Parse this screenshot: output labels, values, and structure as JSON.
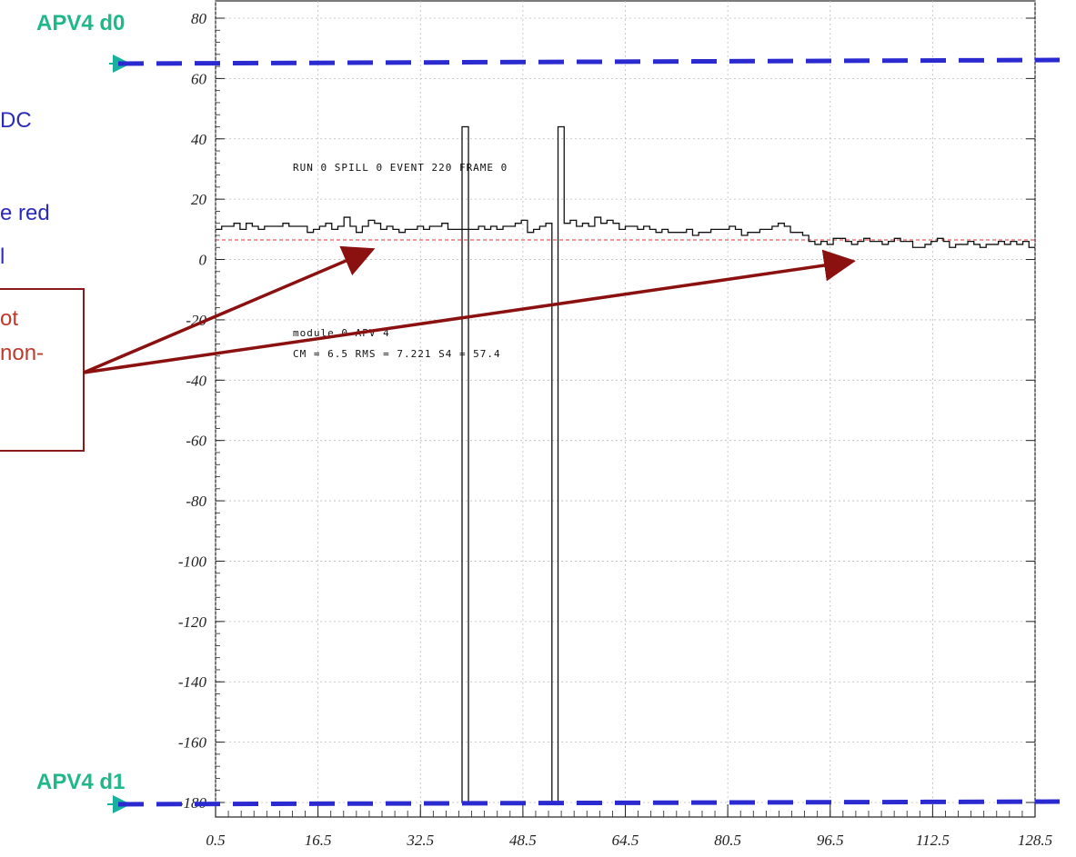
{
  "labels": {
    "top_marker": "APV4 d0",
    "bottom_marker": "APV4 d1"
  },
  "side_text": {
    "line1": "DC",
    "line2": "e red",
    "line3": "l",
    "box_line1": "ot",
    "box_line2": "non-"
  },
  "annotations": {
    "run_line": "RUN   0  SPILL   0  EVENT   220  FRAME   0",
    "module_line": "module 0 APV 4",
    "cm_line": "CM =    6.5  RMS =  7.221  S4 =   57.4"
  },
  "colors": {
    "marker_line": "#2a2ad0",
    "marker_arrow": "#19b0a0",
    "marker_label": "#1fb88a",
    "side_text": "#2b2bb8",
    "box_border": "#8b1a1a",
    "box_text": "#c0392b",
    "annotation_arrow": "#8b1010",
    "mean_line": "#e03030",
    "histogram": "#111111"
  },
  "chart_data": {
    "type": "line",
    "style": "step histogram",
    "title": "",
    "xlabel": "",
    "ylabel": "",
    "xlim": [
      0.5,
      128.5
    ],
    "ylim": [
      -185,
      82
    ],
    "x_ticks": [
      "0.5",
      "16.5",
      "32.5",
      "48.5",
      "64.5",
      "80.5",
      "96.5",
      "112.5",
      "128.5"
    ],
    "y_ticks": [
      "80",
      "60",
      "40",
      "20",
      "0",
      "-20",
      "-40",
      "-60",
      "-80",
      "-100",
      "-120",
      "-140",
      "-160",
      "-180"
    ],
    "grid": true,
    "series": [
      {
        "values": [
          10,
          11,
          11,
          12,
          10,
          12,
          11,
          10,
          11,
          11,
          11,
          12,
          11,
          11,
          11,
          9,
          10,
          11,
          12,
          10,
          11,
          14,
          11,
          9,
          11,
          13,
          12,
          10,
          11,
          10,
          9,
          10,
          10,
          11,
          10,
          11,
          11,
          12,
          10,
          10,
          10,
          10,
          10,
          11,
          10,
          11,
          10,
          11,
          11,
          12,
          13,
          9,
          10,
          11,
          12,
          -180,
          44,
          12,
          13,
          11,
          12,
          11,
          14,
          12,
          13,
          12,
          10,
          11,
          11,
          10,
          11,
          10,
          9,
          10,
          9,
          9,
          9,
          10,
          8,
          9,
          9,
          10,
          10,
          10,
          11,
          10,
          8,
          9,
          9,
          10,
          10,
          11,
          12,
          11,
          9,
          9,
          8,
          6,
          5,
          6,
          5,
          7,
          7,
          6,
          5,
          6,
          7,
          6,
          6,
          5,
          6,
          7,
          6,
          6,
          4,
          4,
          5,
          6,
          7,
          6,
          4,
          5,
          5,
          6,
          5,
          4,
          5,
          5,
          6,
          5,
          6,
          5,
          6,
          4
        ]
      }
    ],
    "mean_line_y": 6.5,
    "spike": {
      "x": 39.5,
      "min": -180,
      "max": 44
    }
  }
}
